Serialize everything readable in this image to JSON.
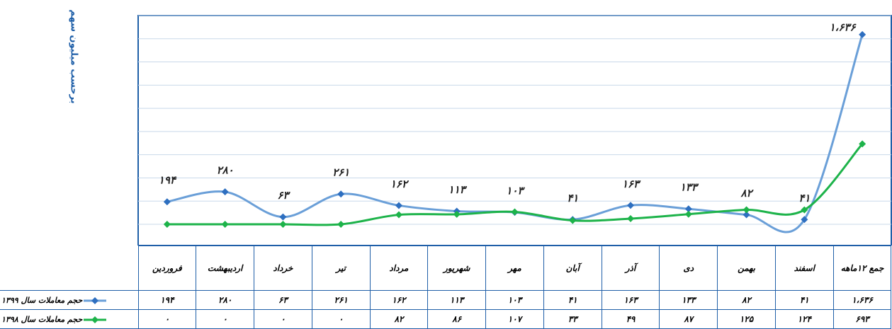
{
  "chart_data": {
    "type": "line",
    "y_axis_label": "برحسب میلیون سهم",
    "categories": [
      "فروردین",
      "اردیبهشت",
      "خرداد",
      "تیر",
      "مرداد",
      "شهریور",
      "مهر",
      "آبان",
      "آذر",
      "دی",
      "بهمن",
      "اسفند",
      "جمع ۱۲ماهه"
    ],
    "series": [
      {
        "name": "حجم معاملات سال ۱۳۹۹",
        "color": "#6a9fd8",
        "marker_color": "#2e6fc0",
        "values": [
          194,
          280,
          63,
          261,
          162,
          113,
          103,
          41,
          163,
          133,
          82,
          41,
          1636
        ],
        "value_labels": [
          "۱۹۴",
          "۲۸۰",
          "۶۳",
          "۲۶۱",
          "۱۶۲",
          "۱۱۳",
          "۱۰۳",
          "۴۱",
          "۱۶۳",
          "۱۳۳",
          "۸۲",
          "۴۱",
          "۱،۶۳۶"
        ]
      },
      {
        "name": "حجم معاملات سال ۱۳۹۸",
        "color": "#1db34a",
        "marker_color": "#1db34a",
        "values": [
          0,
          0,
          0,
          0,
          82,
          86,
          107,
          33,
          49,
          87,
          125,
          124,
          693
        ],
        "value_labels": [
          "۰",
          "۰",
          "۰",
          "۰",
          "۸۲",
          "۸۶",
          "۱۰۷",
          "۳۳",
          "۴۹",
          "۸۷",
          "۱۲۵",
          "۱۲۴",
          "۶۹۳"
        ]
      }
    ],
    "ylim": [
      0,
      1800
    ],
    "yticks": [
      0,
      200,
      400,
      600,
      800,
      1000,
      1200,
      1400,
      1600,
      1800
    ],
    "grid": true,
    "data_labels_series": 0
  }
}
